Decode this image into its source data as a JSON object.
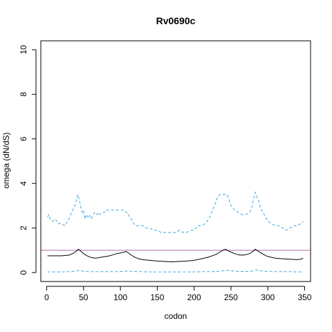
{
  "chart_data": {
    "type": "line",
    "title": "Rv0690c",
    "xlabel": "codon",
    "ylabel": "omega (dN/dS)",
    "xlim": [
      -8,
      358
    ],
    "ylim": [
      -0.4,
      10.4
    ],
    "xticks": [
      0,
      50,
      100,
      150,
      200,
      250,
      300,
      350
    ],
    "yticks": [
      0,
      2,
      4,
      6,
      8,
      10
    ],
    "grid": false,
    "legend": "none",
    "reference_line": {
      "y": 1,
      "color": "#b366b3"
    },
    "series": [
      {
        "style": "dashed",
        "color": "#3aa6dd",
        "x": [
          1,
          3,
          5,
          8,
          12,
          15,
          20,
          25,
          30,
          35,
          38,
          40,
          42,
          44,
          46,
          48,
          50,
          52,
          54,
          56,
          58,
          60,
          62,
          65,
          68,
          70,
          72,
          75,
          78,
          80,
          85,
          90,
          95,
          100,
          105,
          108,
          110,
          112,
          115,
          118,
          120,
          125,
          130,
          135,
          140,
          145,
          150,
          155,
          160,
          165,
          170,
          175,
          180,
          185,
          190,
          195,
          200,
          205,
          210,
          215,
          220,
          225,
          230,
          232,
          235,
          240,
          245,
          248,
          250,
          255,
          260,
          265,
          270,
          275,
          278,
          280,
          283,
          285,
          288,
          290,
          295,
          300,
          305,
          310,
          315,
          320,
          325,
          330,
          335,
          340,
          345,
          348
        ],
        "y": [
          2.5,
          2.6,
          2.4,
          2.3,
          2.4,
          2.2,
          2.2,
          2.1,
          2.4,
          2.8,
          3.0,
          3.2,
          3.5,
          3.3,
          3.0,
          2.7,
          2.8,
          2.4,
          2.6,
          2.5,
          2.6,
          2.4,
          2.5,
          2.7,
          2.6,
          2.7,
          2.6,
          2.7,
          2.7,
          2.8,
          2.8,
          2.8,
          2.8,
          2.8,
          2.8,
          2.7,
          2.7,
          2.5,
          2.4,
          2.2,
          2.1,
          2.1,
          2.1,
          2.0,
          2.0,
          1.9,
          1.9,
          1.8,
          1.8,
          1.8,
          1.8,
          1.8,
          1.9,
          1.8,
          1.8,
          1.9,
          1.9,
          2.1,
          2.1,
          2.2,
          2.4,
          2.8,
          3.2,
          3.4,
          3.5,
          3.5,
          3.5,
          3.2,
          3.0,
          2.8,
          2.7,
          2.6,
          2.6,
          2.7,
          2.9,
          3.2,
          3.6,
          3.4,
          3.2,
          2.9,
          2.6,
          2.3,
          2.2,
          2.1,
          2.1,
          2.0,
          1.9,
          2.0,
          2.1,
          2.1,
          2.2,
          2.3
        ]
      },
      {
        "style": "solid",
        "color": "#000000",
        "x": [
          1,
          10,
          20,
          30,
          35,
          40,
          43,
          45,
          50,
          55,
          60,
          65,
          70,
          75,
          80,
          85,
          90,
          95,
          100,
          105,
          108,
          110,
          115,
          120,
          125,
          130,
          140,
          150,
          160,
          170,
          180,
          190,
          200,
          210,
          220,
          230,
          235,
          240,
          243,
          245,
          250,
          255,
          260,
          265,
          270,
          275,
          280,
          283,
          285,
          290,
          295,
          300,
          310,
          320,
          330,
          340,
          345,
          348
        ],
        "y": [
          0.75,
          0.75,
          0.75,
          0.78,
          0.85,
          0.95,
          1.05,
          1.0,
          0.85,
          0.75,
          0.68,
          0.65,
          0.66,
          0.7,
          0.72,
          0.75,
          0.8,
          0.85,
          0.88,
          0.92,
          0.95,
          0.9,
          0.78,
          0.68,
          0.62,
          0.58,
          0.55,
          0.52,
          0.5,
          0.48,
          0.5,
          0.52,
          0.55,
          0.62,
          0.7,
          0.82,
          0.92,
          1.02,
          1.05,
          1.0,
          0.92,
          0.85,
          0.8,
          0.78,
          0.8,
          0.85,
          0.95,
          1.05,
          1.0,
          0.9,
          0.8,
          0.72,
          0.65,
          0.62,
          0.6,
          0.58,
          0.6,
          0.65
        ]
      },
      {
        "style": "dashed",
        "color": "#3aa6dd",
        "x": [
          1,
          10,
          20,
          30,
          40,
          45,
          50,
          60,
          70,
          80,
          90,
          100,
          110,
          120,
          130,
          140,
          150,
          160,
          170,
          180,
          190,
          200,
          210,
          220,
          230,
          240,
          245,
          250,
          260,
          270,
          280,
          285,
          290,
          300,
          310,
          320,
          330,
          340,
          348
        ],
        "y": [
          0.03,
          0.03,
          0.03,
          0.04,
          0.07,
          0.1,
          0.06,
          0.04,
          0.04,
          0.04,
          0.04,
          0.05,
          0.07,
          0.05,
          0.04,
          0.03,
          0.03,
          0.03,
          0.03,
          0.03,
          0.03,
          0.03,
          0.04,
          0.04,
          0.05,
          0.08,
          0.1,
          0.08,
          0.05,
          0.05,
          0.07,
          0.12,
          0.08,
          0.05,
          0.04,
          0.04,
          0.04,
          0.03,
          0.03
        ]
      }
    ]
  }
}
